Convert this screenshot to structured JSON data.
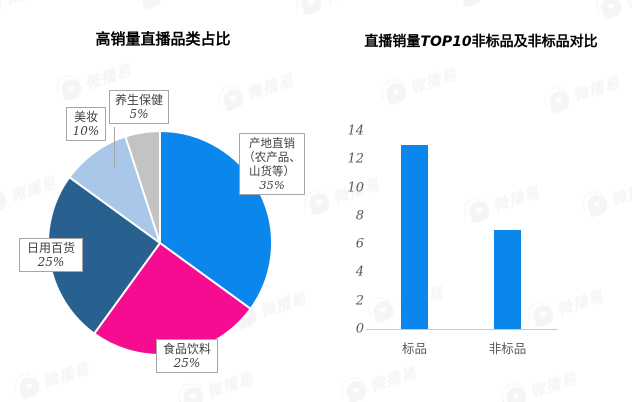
{
  "brand": {
    "watermark_text": "微播易"
  },
  "chart_data": [
    {
      "type": "pie",
      "title": "高销量直播品类占比",
      "labels": [
        "产地直销（农产品、山货等）",
        "食品饮料",
        "日用百货",
        "美妆",
        "养生保健"
      ],
      "label_lines": [
        [
          "产地直销",
          "（农产品、",
          "山货等）"
        ],
        [
          "食品饮料"
        ],
        [
          "日用百货"
        ],
        [
          "美妆"
        ],
        [
          "养生保健"
        ]
      ],
      "values": [
        35,
        25,
        25,
        10,
        5
      ],
      "pct_labels": [
        "35%",
        "25%",
        "25%",
        "10%",
        "5%"
      ],
      "unit": "%",
      "colors": [
        "#0B86EC",
        "#F50C90",
        "#28618F",
        "#A9C7E9",
        "#C3C3C3"
      ],
      "start_angle_deg": 0,
      "direction": "clockwise",
      "slice_border_color": "#FFFFFF",
      "legend_position": "none"
    },
    {
      "type": "bar",
      "title": "直播销量TOP10非标品及非标品对比",
      "title_parts": {
        "prefix": "直播销量",
        "italic": "TOP10",
        "suffix": "非标品及非标品对比"
      },
      "categories": [
        "标品",
        "非标品"
      ],
      "values": [
        13,
        7
      ],
      "xlabel": "",
      "ylabel": "",
      "ylim": [
        0,
        14
      ],
      "ytick_step": 2,
      "yticks": [
        0,
        2,
        4,
        6,
        8,
        10,
        12,
        14
      ],
      "grid": false,
      "legend_position": "none",
      "bar_color": "#0B86EC",
      "axis_line_color": "#C9C9C9",
      "tick_label_color": "#595959"
    }
  ]
}
